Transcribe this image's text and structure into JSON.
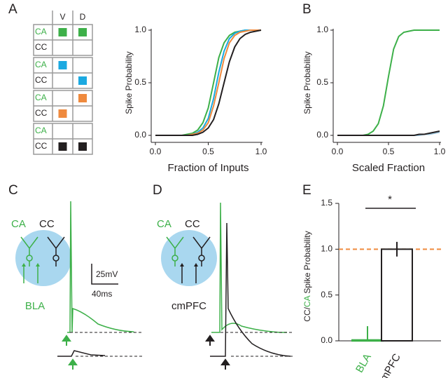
{
  "panel_labels": [
    "A",
    "B",
    "C",
    "D",
    "E"
  ],
  "condition_grid": {
    "columns": [
      "V",
      "D"
    ],
    "groups": [
      {
        "rows": [
          {
            "label": "CA",
            "cells": [
              "#3db049",
              "#3db049"
            ]
          },
          {
            "label": "CC",
            "cells": [
              null,
              null
            ]
          }
        ]
      },
      {
        "rows": [
          {
            "label": "CA",
            "cells": [
              "#1ba9e1",
              null
            ]
          },
          {
            "label": "CC",
            "cells": [
              null,
              "#1ba9e1"
            ]
          }
        ]
      },
      {
        "rows": [
          {
            "label": "CA",
            "cells": [
              null,
              "#ef8a3e"
            ]
          },
          {
            "label": "CC",
            "cells": [
              "#ef8a3e",
              null
            ]
          }
        ]
      },
      {
        "rows": [
          {
            "label": "CA",
            "cells": [
              null,
              null
            ]
          },
          {
            "label": "CC",
            "cells": [
              "#231f20",
              "#231f20"
            ]
          }
        ]
      }
    ]
  },
  "circuits": [
    {
      "left": "CA",
      "right": "CC",
      "input": "BLA",
      "input_color": "#3db049",
      "scale_y": "25mV",
      "scale_x": "40ms"
    },
    {
      "left": "CA",
      "right": "CC",
      "input": "cmPFC",
      "input_color": "#231f20"
    }
  ],
  "chart_data": [
    {
      "type": "line",
      "xlabel": "Fraction of Inputs",
      "ylabel": "Spike Probability",
      "xlim": [
        0,
        1
      ],
      "ylim": [
        0,
        1
      ],
      "xticks": [
        {
          "value": 0,
          "label": "0.0"
        },
        {
          "value": 0.5,
          "label": "0.5"
        },
        {
          "value": 1,
          "label": "1.0"
        }
      ],
      "yticks": [
        {
          "value": 0,
          "label": "0.0"
        },
        {
          "value": 0.5,
          "label": "0.5"
        },
        {
          "value": 1,
          "label": "1.0"
        }
      ],
      "x": [
        0,
        0.05,
        0.1,
        0.15,
        0.2,
        0.25,
        0.3,
        0.35,
        0.4,
        0.45,
        0.5,
        0.55,
        0.6,
        0.65,
        0.7,
        0.75,
        0.8,
        0.85,
        0.9,
        0.95,
        1
      ],
      "series": [
        {
          "color": "#3db049",
          "values": [
            0,
            0,
            0,
            0,
            0,
            0,
            0.01,
            0.02,
            0.05,
            0.12,
            0.26,
            0.5,
            0.74,
            0.88,
            0.95,
            0.98,
            0.99,
            1,
            1,
            1,
            1
          ]
        },
        {
          "color": "#1ba9e1",
          "values": [
            0,
            0,
            0,
            0,
            0,
            0,
            0,
            0.01,
            0.03,
            0.07,
            0.16,
            0.35,
            0.6,
            0.8,
            0.92,
            0.97,
            0.99,
            1,
            1,
            1,
            1
          ]
        },
        {
          "color": "#ef8a3e",
          "values": [
            0,
            0,
            0,
            0,
            0,
            0,
            0,
            0.01,
            0.02,
            0.05,
            0.12,
            0.28,
            0.5,
            0.73,
            0.88,
            0.95,
            0.98,
            0.99,
            1,
            1,
            1
          ]
        },
        {
          "color": "#231f20",
          "values": [
            0,
            0,
            0,
            0,
            0,
            0,
            0,
            0,
            0.01,
            0.03,
            0.07,
            0.15,
            0.3,
            0.5,
            0.7,
            0.84,
            0.92,
            0.96,
            0.98,
            0.99,
            1
          ]
        }
      ]
    },
    {
      "type": "line",
      "xlabel": "Scaled Fraction",
      "ylabel": "Spike Probability",
      "xlim": [
        0,
        1
      ],
      "ylim": [
        0,
        1
      ],
      "xticks": [
        {
          "value": 0,
          "label": "0.0"
        },
        {
          "value": 0.5,
          "label": "0.5"
        },
        {
          "value": 1,
          "label": "1.0"
        }
      ],
      "yticks": [
        {
          "value": 0,
          "label": "0.0"
        },
        {
          "value": 0.5,
          "label": "0.5"
        },
        {
          "value": 1,
          "label": "1.0"
        }
      ],
      "x": [
        0,
        0.05,
        0.1,
        0.15,
        0.2,
        0.25,
        0.3,
        0.35,
        0.4,
        0.45,
        0.5,
        0.55,
        0.6,
        0.65,
        0.7,
        0.75,
        0.8,
        0.85,
        0.9,
        0.95,
        1
      ],
      "series": [
        {
          "color": "#3db049",
          "values": [
            0,
            0,
            0,
            0,
            0,
            0,
            0.01,
            0.04,
            0.11,
            0.28,
            0.56,
            0.82,
            0.94,
            0.98,
            0.99,
            1,
            1,
            1,
            1,
            1,
            1
          ]
        },
        {
          "color": "#9fc8e0",
          "values": [
            0,
            0,
            0,
            0,
            0,
            0,
            0,
            0,
            0,
            0,
            0,
            0,
            0,
            0,
            0,
            0,
            0,
            0.01,
            0.01,
            0.02,
            0.03
          ]
        },
        {
          "color": "#231f20",
          "values": [
            0,
            0,
            0,
            0,
            0,
            0,
            0,
            0,
            0,
            0,
            0,
            0,
            0,
            0,
            0,
            0,
            0.01,
            0.01,
            0.02,
            0.03,
            0.04
          ]
        }
      ]
    },
    {
      "type": "bar",
      "ylabel_parts": [
        {
          "text": "CC/",
          "color": "#231f20"
        },
        {
          "text": "CA",
          "color": "#3db049"
        },
        {
          "text": " Spike Probability",
          "color": "#231f20"
        }
      ],
      "categories": [
        "BLA",
        "cmPFC"
      ],
      "colors": [
        "#3db049",
        "#231f20"
      ],
      "values": [
        0.01,
        1
      ],
      "errors": [
        0.15,
        0.08
      ],
      "ylim": [
        0,
        1.5
      ],
      "yticks": [
        {
          "value": 0,
          "label": "0.0"
        },
        {
          "value": 0.5,
          "label": "0.5"
        },
        {
          "value": 1,
          "label": "1.0"
        },
        {
          "value": 1.5,
          "label": "1.5"
        }
      ],
      "reference_line": 1,
      "reference_color": "#ef8a3e",
      "annotation": "*"
    }
  ]
}
